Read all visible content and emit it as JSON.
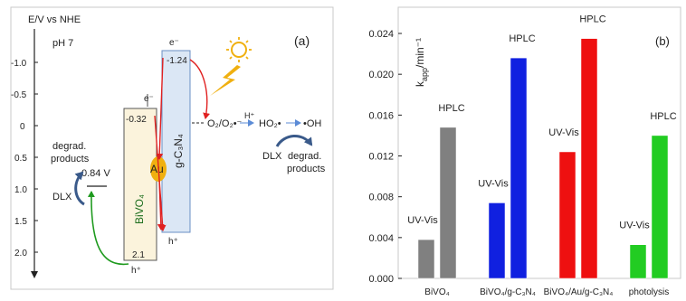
{
  "panel_a": {
    "label": "(a)",
    "axis_title": "E/V vs NHE",
    "ph": "pH 7",
    "ticks": [
      "-1.0",
      "-0.5",
      "0",
      "0.5",
      "1.0",
      "1.5",
      "2.0"
    ],
    "bivo4": {
      "name": "BiVO₄",
      "cb": "-0.32",
      "vb": "2.1",
      "fill": "#fbf3dc"
    },
    "gc3n4": {
      "name": "g-C₃N₄",
      "cb": "-1.24",
      "fill": "#dbe7f5"
    },
    "au": "Au",
    "e": "e⁻",
    "h": "h⁺",
    "oxygen": "O₂/O₂•⁻",
    "hplus": "H⁺",
    "ho2": "HO₂•",
    "oh": "•OH",
    "dlx": "DLX",
    "degrad": "degrad.",
    "products": "products",
    "v084": "0.84 V"
  },
  "chart_data": {
    "type": "bar",
    "panel_label": "(b)",
    "ylabel_main": "k",
    "ylabel_sub": "app",
    "ylabel_tail": "/min⁻¹",
    "ylim": [
      0,
      0.024
    ],
    "yticks": [
      "0.000",
      "0.004",
      "0.008",
      "0.012",
      "0.016",
      "0.020",
      "0.024"
    ],
    "categories": [
      "BiVO₄",
      "BiVO₄/g-C₃N₄",
      "BiVO₄/Au/g-C₃N₄",
      "photolysis"
    ],
    "colors": [
      "#808080",
      "#1020e0",
      "#ee1010",
      "#22cc22"
    ],
    "methods": [
      "UV-Vis",
      "HPLC"
    ],
    "values": {
      "UV-Vis": [
        0.0038,
        0.0074,
        0.0124,
        0.0033
      ],
      "HPLC": [
        0.0148,
        0.0216,
        0.0235,
        0.014
      ]
    }
  }
}
